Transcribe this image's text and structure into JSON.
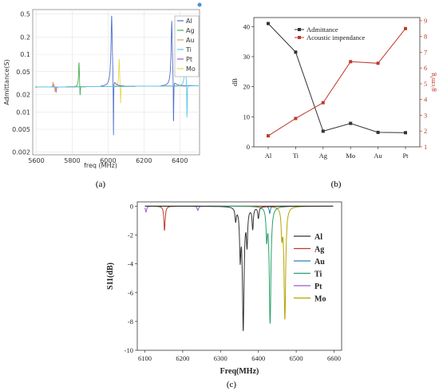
{
  "chart_data": [
    {
      "type": "line",
      "caption": "(a)",
      "xlabel": "freq (MHz)",
      "ylabel": "Admittance(S)",
      "yscale": "log",
      "xlim": [
        5580,
        6510
      ],
      "ylim": [
        0.0018,
        0.6
      ],
      "xticks": [
        "5600",
        "5800",
        "6000",
        "6200",
        "6400"
      ],
      "yticks": [
        "0.5",
        "0.2",
        "0.1",
        "0.05",
        "0.02",
        "0.01",
        "0.005",
        "0.002"
      ],
      "grid": true,
      "legend_position": "top-right",
      "baseline": 0.027,
      "colors": {
        "Al": "#4f6fd0",
        "Ag": "#4cae4c",
        "Au": "#e8a050",
        "Ti": "#5bc8e8",
        "Pt": "#9b59d0",
        "Mo": "#e8d84a"
      },
      "series": [
        {
          "name": "Al",
          "resonance": 6020,
          "anti_resonance": 6030,
          "peak": 0.48,
          "min": 0.002,
          "secondary": [
            {
              "f": 6355,
              "peak": 0.38,
              "min": 0.0035
            }
          ]
        },
        {
          "name": "Ag",
          "resonance": 5838,
          "anti_resonance": 5844,
          "peak": 0.075,
          "min": 0.016
        },
        {
          "name": "Au",
          "resonance": 5693,
          "anti_resonance": 5705,
          "peak": 0.033,
          "min": 0.022
        },
        {
          "name": "Ti",
          "resonance": 6430,
          "anti_resonance": 6440,
          "peak": 0.16,
          "min": 0.006
        },
        {
          "name": "Pt",
          "resonance": 5697,
          "anti_resonance": 5710,
          "peak": 0.03,
          "min": 0.022
        },
        {
          "name": "Mo",
          "resonance": 6062,
          "anti_resonance": 6070,
          "peak": 0.085,
          "min": 0.012
        }
      ]
    },
    {
      "type": "line",
      "caption": "(b)",
      "categories": [
        "Al",
        "Ti",
        "Ag",
        "Mo",
        "Au",
        "Pt"
      ],
      "ylabel": "dB",
      "y2label": "g/cm³g",
      "ylim": [
        0,
        43
      ],
      "y2lim": [
        1,
        9.2
      ],
      "yticks": [
        "0",
        "10",
        "20",
        "30",
        "40"
      ],
      "y2ticks": [
        "1",
        "2",
        "3",
        "4",
        "5",
        "6",
        "7",
        "8",
        "9"
      ],
      "legend_position": "top-right",
      "series": [
        {
          "name": "Admittance",
          "axis": "left",
          "color": "#333333",
          "values": [
            41,
            31.5,
            5.2,
            7.8,
            4.8,
            4.7
          ]
        },
        {
          "name": "Acoustic impendance",
          "axis": "right",
          "color": "#c0392b",
          "values": [
            1.7,
            2.8,
            3.8,
            6.4,
            6.3,
            8.5
          ]
        }
      ]
    },
    {
      "type": "line",
      "caption": "(c)",
      "xlabel": "Freq(MHz)",
      "ylabel": "S11(dB)",
      "xlim": [
        6080,
        6620
      ],
      "ylim": [
        -10,
        0.3
      ],
      "xticks": [
        "6100",
        "6200",
        "6300",
        "6400",
        "6500",
        "6600"
      ],
      "yticks": [
        "0",
        "-2",
        "-4",
        "-6",
        "-8",
        "-10"
      ],
      "legend_position": "right",
      "series": [
        {
          "name": "Al",
          "color": "#333333",
          "dips": [
            {
              "f": 6360,
              "depth": -8.4
            },
            {
              "f": 6352,
              "depth": -3.2
            },
            {
              "f": 6370,
              "depth": -2.4
            },
            {
              "f": 6385,
              "depth": -1.5
            },
            {
              "f": 6400,
              "depth": -0.8
            },
            {
              "f": 6340,
              "depth": -0.9
            }
          ]
        },
        {
          "name": "Ag",
          "color": "#c0392b",
          "dips": [
            {
              "f": 6152,
              "depth": -1.7
            }
          ]
        },
        {
          "name": "Au",
          "color": "#2c7fb8",
          "dips": [
            {
              "f": 6430,
              "depth": -0.5
            }
          ]
        },
        {
          "name": "Ti",
          "color": "#27a06a",
          "dips": [
            {
              "f": 6431,
              "depth": -8.1
            },
            {
              "f": 6422,
              "depth": -2.0
            }
          ]
        },
        {
          "name": "Pt",
          "color": "#9b59d0",
          "dips": [
            {
              "f": 6103,
              "depth": -0.4
            },
            {
              "f": 6240,
              "depth": -0.3
            }
          ]
        },
        {
          "name": "Mo",
          "color": "#b8a300",
          "dips": [
            {
              "f": 6470,
              "depth": -7.8
            },
            {
              "f": 6462,
              "depth": -1.8
            }
          ]
        }
      ]
    }
  ]
}
